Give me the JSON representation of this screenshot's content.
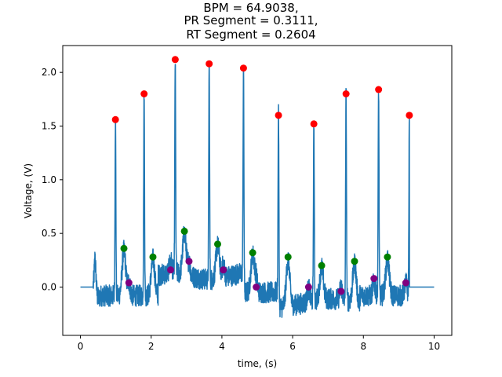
{
  "chart_data": {
    "type": "line",
    "title_lines": [
      "BPM = 64.9038,",
      "PR Segment = 0.3111,",
      "RT Segment = 0.2604"
    ],
    "xlabel": "time, (s)",
    "ylabel": "Voltage, (V)",
    "xlim": [
      -0.5,
      10.5
    ],
    "ylim": [
      -0.45,
      2.25
    ],
    "xticks": [
      0,
      2,
      4,
      6,
      8,
      10
    ],
    "yticks": [
      0.0,
      0.5,
      1.0,
      1.5,
      2.0
    ],
    "xtick_labels": [
      "0",
      "2",
      "4",
      "6",
      "8",
      "10"
    ],
    "ytick_labels": [
      "0.0",
      "0.5",
      "1.0",
      "1.5",
      "2.0"
    ],
    "grid": false,
    "signal_color": "#1f77b4",
    "r_peaks": {
      "color": "#ff0000",
      "x": [
        0.99,
        1.8,
        2.68,
        3.64,
        4.61,
        5.6,
        6.6,
        7.51,
        8.43,
        9.3
      ],
      "y": [
        1.56,
        1.8,
        2.12,
        2.08,
        2.04,
        1.6,
        1.52,
        1.8,
        1.84,
        1.6
      ]
    },
    "t_peaks": {
      "color": "#008000",
      "x": [
        1.23,
        2.05,
        2.94,
        3.88,
        4.87,
        5.87,
        6.82,
        7.75,
        8.68
      ],
      "y": [
        0.36,
        0.28,
        0.52,
        0.4,
        0.32,
        0.28,
        0.2,
        0.24,
        0.28
      ]
    },
    "p_peaks": {
      "color": "#800080",
      "x": [
        1.37,
        2.55,
        3.07,
        4.04,
        4.97,
        6.45,
        7.37,
        8.3,
        9.2
      ],
      "y": [
        0.04,
        0.16,
        0.24,
        0.16,
        0.0,
        0.0,
        -0.04,
        0.08,
        0.04
      ]
    },
    "baseline_flat": {
      "start": [
        0.0,
        0.0
      ],
      "end": [
        10.0,
        0.0
      ]
    }
  }
}
